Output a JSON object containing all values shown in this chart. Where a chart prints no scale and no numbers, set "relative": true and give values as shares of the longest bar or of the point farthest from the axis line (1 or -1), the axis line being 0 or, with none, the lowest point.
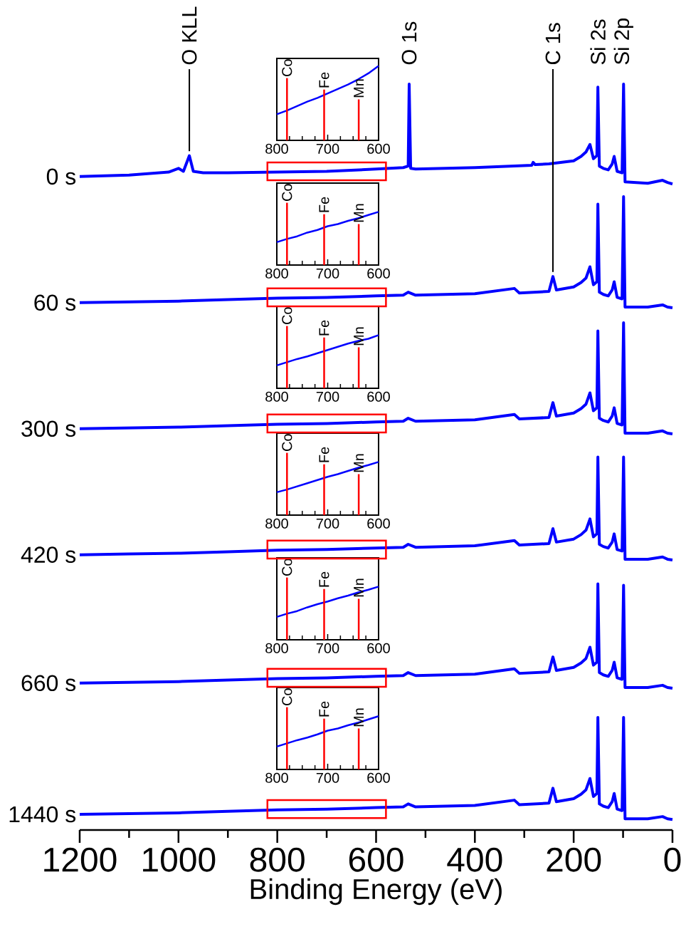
{
  "chart_data": [
    {
      "type": "line",
      "relative": true,
      "xlabel": "Binding Energy (eV)",
      "xlim": [
        1200,
        0
      ],
      "xticks": [
        1200,
        {
          "value": 1100,
          "label": null
        },
        1000,
        {
          "value": 900,
          "label": null
        },
        800,
        {
          "value": 700,
          "label": null
        },
        600,
        {
          "value": 500,
          "label": null
        },
        400,
        {
          "value": 300,
          "label": null
        },
        200,
        {
          "value": 100,
          "label": null
        },
        0
      ],
      "x": [
        1200,
        1100,
        1000,
        900,
        800,
        700,
        600,
        545,
        535,
        520,
        400,
        320,
        310,
        250,
        242,
        235,
        200,
        185,
        175,
        167,
        160,
        153,
        151,
        148,
        140,
        130,
        122,
        118,
        112,
        102,
        99,
        96,
        50,
        20,
        10,
        0
      ],
      "series": [
        {
          "name": "0 s",
          "color": "#0000ff",
          "x": [
            1200,
            1100,
            1020,
            1000,
            990,
            978,
            970,
            950,
            900,
            800,
            700,
            600,
            545,
            535,
            533,
            530,
            520,
            400,
            285,
            282,
            278,
            250,
            200,
            185,
            175,
            167,
            160,
            153,
            151,
            148,
            140,
            130,
            122,
            118,
            112,
            102,
            99,
            96,
            50,
            20,
            10,
            0
          ],
          "values": [
            0.876,
            0.878,
            0.882,
            0.887,
            0.883,
            0.904,
            0.883,
            0.881,
            0.881,
            0.882,
            0.883,
            0.886,
            0.888,
            0.89,
            1.0,
            0.887,
            0.886,
            0.888,
            0.891,
            0.895,
            0.892,
            0.893,
            0.897,
            0.903,
            0.909,
            0.919,
            0.9,
            0.904,
            0.996,
            0.89,
            0.887,
            0.885,
            0.893,
            0.903,
            0.883,
            0.881,
            1.0,
            0.869,
            0.867,
            0.871,
            0.868,
            0.866
          ]
        },
        {
          "name": "60 s",
          "color": "#0000ff",
          "values": [
            0.707,
            0.708,
            0.709,
            0.711,
            0.713,
            0.714,
            0.716,
            0.717,
            0.721,
            0.717,
            0.719,
            0.726,
            0.72,
            0.722,
            0.742,
            0.724,
            0.728,
            0.734,
            0.74,
            0.755,
            0.731,
            0.735,
            0.839,
            0.721,
            0.718,
            0.716,
            0.724,
            0.735,
            0.714,
            0.712,
            0.849,
            0.701,
            0.701,
            0.704,
            0.701,
            0.7
          ]
        },
        {
          "name": "300 s",
          "color": "#0000ff",
          "values": [
            0.538,
            0.539,
            0.54,
            0.542,
            0.544,
            0.545,
            0.547,
            0.548,
            0.552,
            0.548,
            0.55,
            0.557,
            0.551,
            0.553,
            0.573,
            0.555,
            0.559,
            0.565,
            0.571,
            0.586,
            0.562,
            0.566,
            0.669,
            0.552,
            0.549,
            0.547,
            0.555,
            0.566,
            0.545,
            0.543,
            0.68,
            0.532,
            0.532,
            0.535,
            0.532,
            0.531
          ]
        },
        {
          "name": "420 s",
          "color": "#0000ff",
          "values": [
            0.369,
            0.37,
            0.371,
            0.373,
            0.375,
            0.376,
            0.378,
            0.379,
            0.383,
            0.379,
            0.381,
            0.388,
            0.382,
            0.384,
            0.404,
            0.386,
            0.39,
            0.396,
            0.402,
            0.417,
            0.393,
            0.397,
            0.5,
            0.383,
            0.38,
            0.378,
            0.386,
            0.397,
            0.376,
            0.374,
            0.5,
            0.363,
            0.363,
            0.366,
            0.363,
            0.362
          ]
        },
        {
          "name": "660 s",
          "color": "#0000ff",
          "values": [
            0.197,
            0.198,
            0.199,
            0.201,
            0.203,
            0.204,
            0.206,
            0.207,
            0.211,
            0.207,
            0.209,
            0.216,
            0.21,
            0.212,
            0.232,
            0.214,
            0.218,
            0.224,
            0.23,
            0.245,
            0.221,
            0.225,
            0.33,
            0.211,
            0.208,
            0.206,
            0.214,
            0.225,
            0.204,
            0.202,
            0.328,
            0.191,
            0.191,
            0.194,
            0.191,
            0.19
          ]
        },
        {
          "name": "1440 s",
          "color": "#0000ff",
          "values": [
            0.021,
            0.022,
            0.023,
            0.025,
            0.027,
            0.028,
            0.03,
            0.031,
            0.035,
            0.031,
            0.033,
            0.04,
            0.034,
            0.036,
            0.056,
            0.038,
            0.042,
            0.048,
            0.054,
            0.069,
            0.045,
            0.049,
            0.151,
            0.035,
            0.032,
            0.03,
            0.038,
            0.049,
            0.028,
            0.026,
            0.151,
            0.015,
            0.015,
            0.018,
            0.015,
            0.014
          ]
        }
      ],
      "annotations": [
        {
          "text": "O KLL",
          "x": 978,
          "y": 0.904
        },
        {
          "text": "O 1s",
          "x": 533,
          "y": 1.0
        },
        {
          "text": "C 1s",
          "x": 242,
          "y": 0.742
        },
        {
          "text": "Si 2s",
          "x": 151,
          "y": 0.996
        },
        {
          "text": "Si 2p",
          "x": 99,
          "y": 1.0
        }
      ]
    },
    {
      "type": "line",
      "relative": true,
      "color": "#0000ff",
      "xlim": [
        800,
        600
      ],
      "xticks": [
        800,
        {
          "value": 775,
          "label": null
        },
        {
          "value": 750,
          "label": null
        },
        {
          "value": 725,
          "label": null
        },
        700,
        {
          "value": 675,
          "label": null
        },
        {
          "value": 650,
          "label": null
        },
        {
          "value": 625,
          "label": null
        },
        600
      ],
      "x": [
        800,
        780,
        760,
        740,
        720,
        700,
        680,
        660,
        640,
        620,
        600
      ],
      "values": [
        0.35,
        0.4,
        0.46,
        0.52,
        0.57,
        0.63,
        0.69,
        0.75,
        0.82,
        0.9,
        1
      ],
      "ref_lines": [
        {
          "axis": "x",
          "value": 780,
          "label": "Co",
          "color": "#ff0000"
        },
        {
          "axis": "x",
          "value": 707,
          "label": "Fe",
          "color": "#ff0000"
        },
        {
          "axis": "x",
          "value": 639,
          "label": "Mn",
          "color": "#ff0000"
        }
      ]
    },
    {
      "type": "line",
      "relative": true,
      "color": "#0000ff",
      "xlim": [
        800,
        600
      ],
      "xticks": [
        800,
        {
          "value": 775,
          "label": null
        },
        {
          "value": 750,
          "label": null
        },
        {
          "value": 725,
          "label": null
        },
        700,
        {
          "value": 675,
          "label": null
        },
        {
          "value": 650,
          "label": null
        },
        {
          "value": 625,
          "label": null
        },
        600
      ],
      "x": [
        800,
        780,
        760,
        740,
        720,
        700,
        680,
        660,
        640,
        620,
        600
      ],
      "values": [
        0.43,
        0.49,
        0.54,
        0.61,
        0.66,
        0.73,
        0.77,
        0.83,
        0.88,
        0.94,
        1
      ],
      "ref_lines": [
        {
          "axis": "x",
          "value": 780,
          "label": "Co",
          "color": "#ff0000"
        },
        {
          "axis": "x",
          "value": 707,
          "label": "Fe",
          "color": "#ff0000"
        },
        {
          "axis": "x",
          "value": 639,
          "label": "Mn",
          "color": "#ff0000"
        }
      ]
    },
    {
      "type": "line",
      "relative": true,
      "color": "#0000ff",
      "xlim": [
        800,
        600
      ],
      "xticks": [
        800,
        {
          "value": 775,
          "label": null
        },
        {
          "value": 750,
          "label": null
        },
        {
          "value": 725,
          "label": null
        },
        700,
        {
          "value": 675,
          "label": null
        },
        {
          "value": 650,
          "label": null
        },
        {
          "value": 625,
          "label": null
        },
        600
      ],
      "x": [
        800,
        780,
        760,
        740,
        720,
        700,
        680,
        660,
        640,
        620,
        600
      ],
      "values": [
        0.43,
        0.49,
        0.55,
        0.6,
        0.66,
        0.72,
        0.78,
        0.84,
        0.89,
        0.93,
        1
      ],
      "ref_lines": [
        {
          "axis": "x",
          "value": 780,
          "label": "Co",
          "color": "#ff0000"
        },
        {
          "axis": "x",
          "value": 707,
          "label": "Fe",
          "color": "#ff0000"
        },
        {
          "axis": "x",
          "value": 639,
          "label": "Mn",
          "color": "#ff0000"
        }
      ]
    },
    {
      "type": "line",
      "relative": true,
      "color": "#0000ff",
      "xlim": [
        800,
        600
      ],
      "xticks": [
        800,
        {
          "value": 775,
          "label": null
        },
        {
          "value": 750,
          "label": null
        },
        {
          "value": 725,
          "label": null
        },
        700,
        {
          "value": 675,
          "label": null
        },
        {
          "value": 650,
          "label": null
        },
        {
          "value": 625,
          "label": null
        },
        600
      ],
      "x": [
        800,
        780,
        760,
        740,
        720,
        700,
        680,
        660,
        640,
        620,
        600
      ],
      "values": [
        0.43,
        0.48,
        0.54,
        0.6,
        0.66,
        0.72,
        0.77,
        0.83,
        0.89,
        0.94,
        1
      ],
      "ref_lines": [
        {
          "axis": "x",
          "value": 780,
          "label": "Co",
          "color": "#ff0000"
        },
        {
          "axis": "x",
          "value": 707,
          "label": "Fe",
          "color": "#ff0000"
        },
        {
          "axis": "x",
          "value": 639,
          "label": "Mn",
          "color": "#ff0000"
        }
      ]
    },
    {
      "type": "line",
      "relative": true,
      "color": "#0000ff",
      "xlim": [
        800,
        600
      ],
      "xticks": [
        800,
        {
          "value": 775,
          "label": null
        },
        {
          "value": 750,
          "label": null
        },
        {
          "value": 725,
          "label": null
        },
        700,
        {
          "value": 675,
          "label": null
        },
        {
          "value": 650,
          "label": null
        },
        {
          "value": 625,
          "label": null
        },
        600
      ],
      "x": [
        800,
        780,
        760,
        740,
        720,
        700,
        680,
        660,
        640,
        620,
        600
      ],
      "values": [
        0.43,
        0.49,
        0.54,
        0.61,
        0.67,
        0.72,
        0.78,
        0.83,
        0.89,
        0.94,
        1
      ],
      "ref_lines": [
        {
          "axis": "x",
          "value": 780,
          "label": "Co",
          "color": "#ff0000"
        },
        {
          "axis": "x",
          "value": 707,
          "label": "Fe",
          "color": "#ff0000"
        },
        {
          "axis": "x",
          "value": 639,
          "label": "Mn",
          "color": "#ff0000"
        }
      ]
    },
    {
      "type": "line",
      "relative": true,
      "color": "#0000ff",
      "xlim": [
        800,
        600
      ],
      "xticks": [
        800,
        {
          "value": 775,
          "label": null
        },
        {
          "value": 750,
          "label": null
        },
        {
          "value": 725,
          "label": null
        },
        700,
        {
          "value": 675,
          "label": null
        },
        {
          "value": 650,
          "label": null
        },
        {
          "value": 625,
          "label": null
        },
        600
      ],
      "x": [
        800,
        780,
        760,
        740,
        720,
        700,
        680,
        660,
        640,
        620,
        600
      ],
      "values": [
        0.43,
        0.49,
        0.55,
        0.6,
        0.66,
        0.73,
        0.77,
        0.83,
        0.88,
        0.94,
        1
      ],
      "ref_lines": [
        {
          "axis": "x",
          "value": 780,
          "label": "Co",
          "color": "#ff0000"
        },
        {
          "axis": "x",
          "value": 707,
          "label": "Fe",
          "color": "#ff0000"
        },
        {
          "axis": "x",
          "value": 639,
          "label": "Mn",
          "color": "#ff0000"
        }
      ]
    }
  ]
}
